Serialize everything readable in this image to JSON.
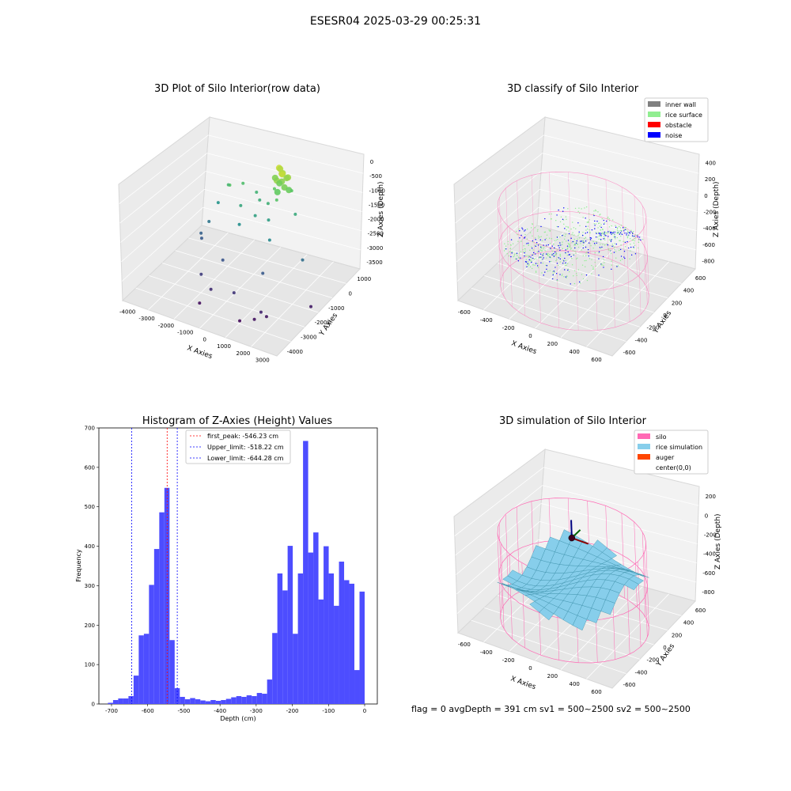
{
  "figure": {
    "suptitle": "ESESR04 2025-03-29 00:25:31",
    "status_line": "flag = 0     avgDepth = 391 cm  sv1 = 500~2500  sv2 = 500~2500"
  },
  "colors": {
    "hist_bar": "#4d4dff",
    "peak_line": "#ff0000",
    "limit_line": "#0000ff",
    "inner_wall": "#808080",
    "rice_surface": "#90ee90",
    "obstacle": "#ff0000",
    "noise": "#0000ff",
    "silo": "#ff69b4",
    "rice_simulation": "#87ceeb",
    "auger": "#ff4500"
  },
  "chart_data": [
    {
      "type": "scatter",
      "title": "3D Plot of Silo Interior(row data)",
      "xlabel": "X Axies",
      "ylabel": "Y Axies",
      "zlabel": "Z Axies (Depth)",
      "x_ticks": [
        "-4000",
        "-3000",
        "-2000",
        "-1000",
        "0",
        "1000",
        "2000",
        "3000"
      ],
      "y_ticks": [
        "1000",
        "0",
        "-1000",
        "-2000",
        "-3000",
        "-4000"
      ],
      "z_ticks": [
        "0",
        "-500",
        "-1000",
        "-1500",
        "-2000",
        "-2500",
        "-3000",
        "-3500"
      ],
      "xlim": [
        -4300,
        3500
      ],
      "ylim": [
        -4000,
        1500
      ],
      "zlim": [
        -3700,
        200
      ],
      "colormap": "viridis (by depth)",
      "points": [
        {
          "x": 600,
          "y": 400,
          "z": -100
        },
        {
          "x": 800,
          "y": 300,
          "z": -200
        },
        {
          "x": 700,
          "y": 500,
          "z": -300
        },
        {
          "x": 900,
          "y": 200,
          "z": -150
        },
        {
          "x": 500,
          "y": 600,
          "z": -250
        },
        {
          "x": 1000,
          "y": 450,
          "z": -350
        },
        {
          "x": 650,
          "y": 150,
          "z": -400
        },
        {
          "x": 850,
          "y": 550,
          "z": -450
        },
        {
          "x": 750,
          "y": 350,
          "z": -500
        },
        {
          "x": 950,
          "y": 250,
          "z": -600
        },
        {
          "x": 550,
          "y": 450,
          "z": -650
        },
        {
          "x": 1100,
          "y": 350,
          "z": -700
        },
        {
          "x": 700,
          "y": 100,
          "z": -750
        },
        {
          "x": 400,
          "y": 300,
          "z": -800
        },
        {
          "x": 1050,
          "y": 600,
          "z": -850
        },
        {
          "x": 300,
          "y": 500,
          "z": -550
        },
        {
          "x": 800,
          "y": -100,
          "z": -900
        },
        {
          "x": -1500,
          "y": -200,
          "z": -900
        },
        {
          "x": -1200,
          "y": 300,
          "z": -1000
        },
        {
          "x": -1800,
          "y": 100,
          "z": -1100
        },
        {
          "x": -600,
          "y": 400,
          "z": -1200
        },
        {
          "x": -300,
          "y": 200,
          "z": -1300
        },
        {
          "x": 200,
          "y": 100,
          "z": -1250
        },
        {
          "x": -900,
          "y": -300,
          "z": -1400
        },
        {
          "x": -100,
          "y": -400,
          "z": -1500
        },
        {
          "x": 500,
          "y": -300,
          "z": -1550
        },
        {
          "x": 1500,
          "y": 200,
          "z": -1350
        },
        {
          "x": -2200,
          "y": -100,
          "z": -1700
        },
        {
          "x": -700,
          "y": -700,
          "z": -1800
        },
        {
          "x": 900,
          "y": -800,
          "z": -1900
        },
        {
          "x": 2400,
          "y": -600,
          "z": -2300
        },
        {
          "x": -2400,
          "y": -500,
          "z": -2200
        },
        {
          "x": -2600,
          "y": -800,
          "z": -2500
        },
        {
          "x": -2500,
          "y": -900,
          "z": -2600
        },
        {
          "x": -1000,
          "y": -1500,
          "z": -2700
        },
        {
          "x": 1100,
          "y": -1600,
          "z": -2600
        },
        {
          "x": 3200,
          "y": -1200,
          "z": -3400
        },
        {
          "x": -1600,
          "y": -2200,
          "z": -3000
        },
        {
          "x": -900,
          "y": -2500,
          "z": -3200
        },
        {
          "x": 200,
          "y": -2400,
          "z": -3100
        },
        {
          "x": 1700,
          "y": -2600,
          "z": -3300
        },
        {
          "x": 1500,
          "y": -2800,
          "z": -3500
        },
        {
          "x": 900,
          "y": -3000,
          "z": -3600
        },
        {
          "x": -1200,
          "y": -2900,
          "z": -3550
        },
        {
          "x": 1900,
          "y": -2500,
          "z": -3450
        }
      ]
    },
    {
      "type": "scatter",
      "title": "3D classify of Silo Interior",
      "xlabel": "X Axies",
      "ylabel": "Y Axies",
      "zlabel": "Z Axies (Depth)",
      "x_ticks": [
        "-600",
        "-400",
        "-200",
        "0",
        "200",
        "400",
        "600"
      ],
      "y_ticks": [
        "600",
        "400",
        "200",
        "0",
        "-200",
        "-400",
        "-600"
      ],
      "z_ticks": [
        "400",
        "200",
        "0",
        "-200",
        "-400",
        "-600",
        "-800"
      ],
      "xlim": [
        -700,
        700
      ],
      "ylim": [
        -700,
        700
      ],
      "zlim": [
        -950,
        450
      ],
      "legend": [
        "inner wall",
        "rice surface",
        "obstacle",
        "noise"
      ],
      "legend_loc": "top-right",
      "silo_radius": 600,
      "silo_z_range": [
        -950,
        0
      ],
      "surface_depth_range": [
        -600,
        -200
      ]
    },
    {
      "type": "histogram",
      "title": "Histogram of Z-Axies (Height) Values",
      "xlabel": "Depth (cm)",
      "ylabel": "Frequency",
      "xlim": [
        -735,
        35
      ],
      "ylim": [
        0,
        700
      ],
      "x_ticks": [
        -700,
        -600,
        -500,
        -400,
        -300,
        -200,
        -100,
        0
      ],
      "y_ticks": [
        0,
        100,
        200,
        300,
        400,
        500,
        600,
        700
      ],
      "bin_width": 14.2,
      "bin_start": -710,
      "values": [
        3,
        10,
        14,
        14,
        20,
        72,
        174,
        178,
        302,
        393,
        486,
        548,
        162,
        40,
        18,
        12,
        15,
        12,
        9,
        7,
        10,
        8,
        10,
        13,
        17,
        20,
        18,
        22,
        20,
        28,
        26,
        62,
        180,
        331,
        288,
        401,
        178,
        331,
        667,
        384,
        435,
        265,
        400,
        331,
        249,
        361,
        314,
        305,
        86,
        285
      ],
      "vlines": [
        {
          "label": "first_peak: -546.23 cm",
          "x": -546.23,
          "color": "red"
        },
        {
          "label": "Upper_limit: -518.22 cm",
          "x": -518.22,
          "color": "blue"
        },
        {
          "label": "Lower_limit: -644.28 cm",
          "x": -644.28,
          "color": "blue"
        }
      ],
      "legend_loc": "top-center",
      "grid": false
    },
    {
      "type": "surface",
      "title": "3D simulation of Silo Interior",
      "xlabel": "X Axies",
      "ylabel": "Y Axies",
      "zlabel": "Z Axies (Depth)",
      "x_ticks": [
        "-600",
        "-400",
        "-200",
        "0",
        "200",
        "400",
        "600"
      ],
      "y_ticks": [
        "600",
        "400",
        "200",
        "0",
        "-200",
        "-400",
        "-600"
      ],
      "z_ticks": [
        "200",
        "0",
        "-200",
        "-400",
        "-600",
        "-800"
      ],
      "xlim": [
        -700,
        700
      ],
      "ylim": [
        -700,
        700
      ],
      "zlim": [
        -950,
        350
      ],
      "legend": [
        "silo",
        "rice simulation",
        "auger",
        "center(0,0)"
      ],
      "legend_loc": "top-right",
      "silo_radius": 600,
      "silo_z_range": [
        -950,
        0
      ],
      "surface_depth_range": [
        -800,
        -200
      ]
    }
  ]
}
